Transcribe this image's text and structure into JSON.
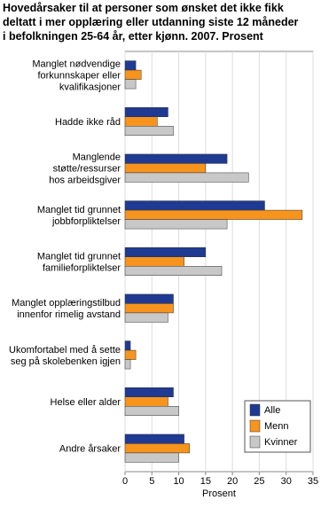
{
  "chart_data": {
    "type": "hbar",
    "title": "Hovedårsaker til at personer som ønsket det ikke fikk\ndeltatt i mer opplæring eller utdanning siste 12 måneder\ni befolkningen 25-64 år, etter kjønn. 2007. Prosent",
    "xlabel": "Prosent",
    "categories": [
      "Manglet nødvendige\nforkunnskaper eller\nkvalifikasjoner",
      "Hadde ikke råd",
      "Manglende\nstøtte/ressurser\nhos arbeidsgiver",
      "Manglet tid grunnet\njobbforpliktelser",
      "Manglet tid grunnet\nfamilieforpliktelser",
      "Manglet opplæringstilbud\ninnenfor rimelig avstand",
      "Ukomfortabel med å sette\nseg på skolebenken igjen",
      "Helse eller alder",
      "Andre årsaker"
    ],
    "series": [
      {
        "name": "Alle",
        "color": "#1f3a93",
        "values": [
          2,
          8,
          19,
          26,
          15,
          9,
          1,
          9,
          11
        ]
      },
      {
        "name": "Menn",
        "color": "#f7941d",
        "values": [
          3,
          6,
          15,
          33,
          11,
          9,
          2,
          8,
          12
        ]
      },
      {
        "name": "Kvinner",
        "color": "#c8c8c8",
        "values": [
          2,
          9,
          23,
          19,
          18,
          8,
          1,
          10,
          10
        ]
      }
    ],
    "xlim": [
      0,
      35
    ],
    "xticks": [
      0,
      5,
      10,
      15,
      20,
      25,
      30,
      35
    ],
    "grid": true,
    "legend": "lower-right"
  }
}
